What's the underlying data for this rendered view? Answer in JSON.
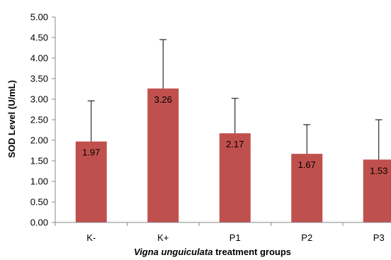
{
  "chart_data": {
    "type": "bar",
    "categories": [
      "K-",
      "K+",
      "P1",
      "P2",
      "P3"
    ],
    "values": [
      1.97,
      3.26,
      2.17,
      1.67,
      1.53
    ],
    "error_upper": [
      2.96,
      4.45,
      3.02,
      2.38,
      2.5
    ],
    "data_labels": [
      "1.97",
      "3.26",
      "2.17",
      "1.67",
      "1.53"
    ],
    "yticks": [
      "0.00",
      "0.50",
      "1.00",
      "1.50",
      "2.00",
      "2.50",
      "3.00",
      "3.50",
      "4.00",
      "4.50",
      "5.00"
    ],
    "ylim": [
      0,
      5
    ],
    "ylabel": "SOD Level (U/mL)",
    "xlabel_italic": "Vigna unguiculata",
    "xlabel_rest": " treatment groups",
    "bar_color": "#c0504d",
    "grid": false
  }
}
